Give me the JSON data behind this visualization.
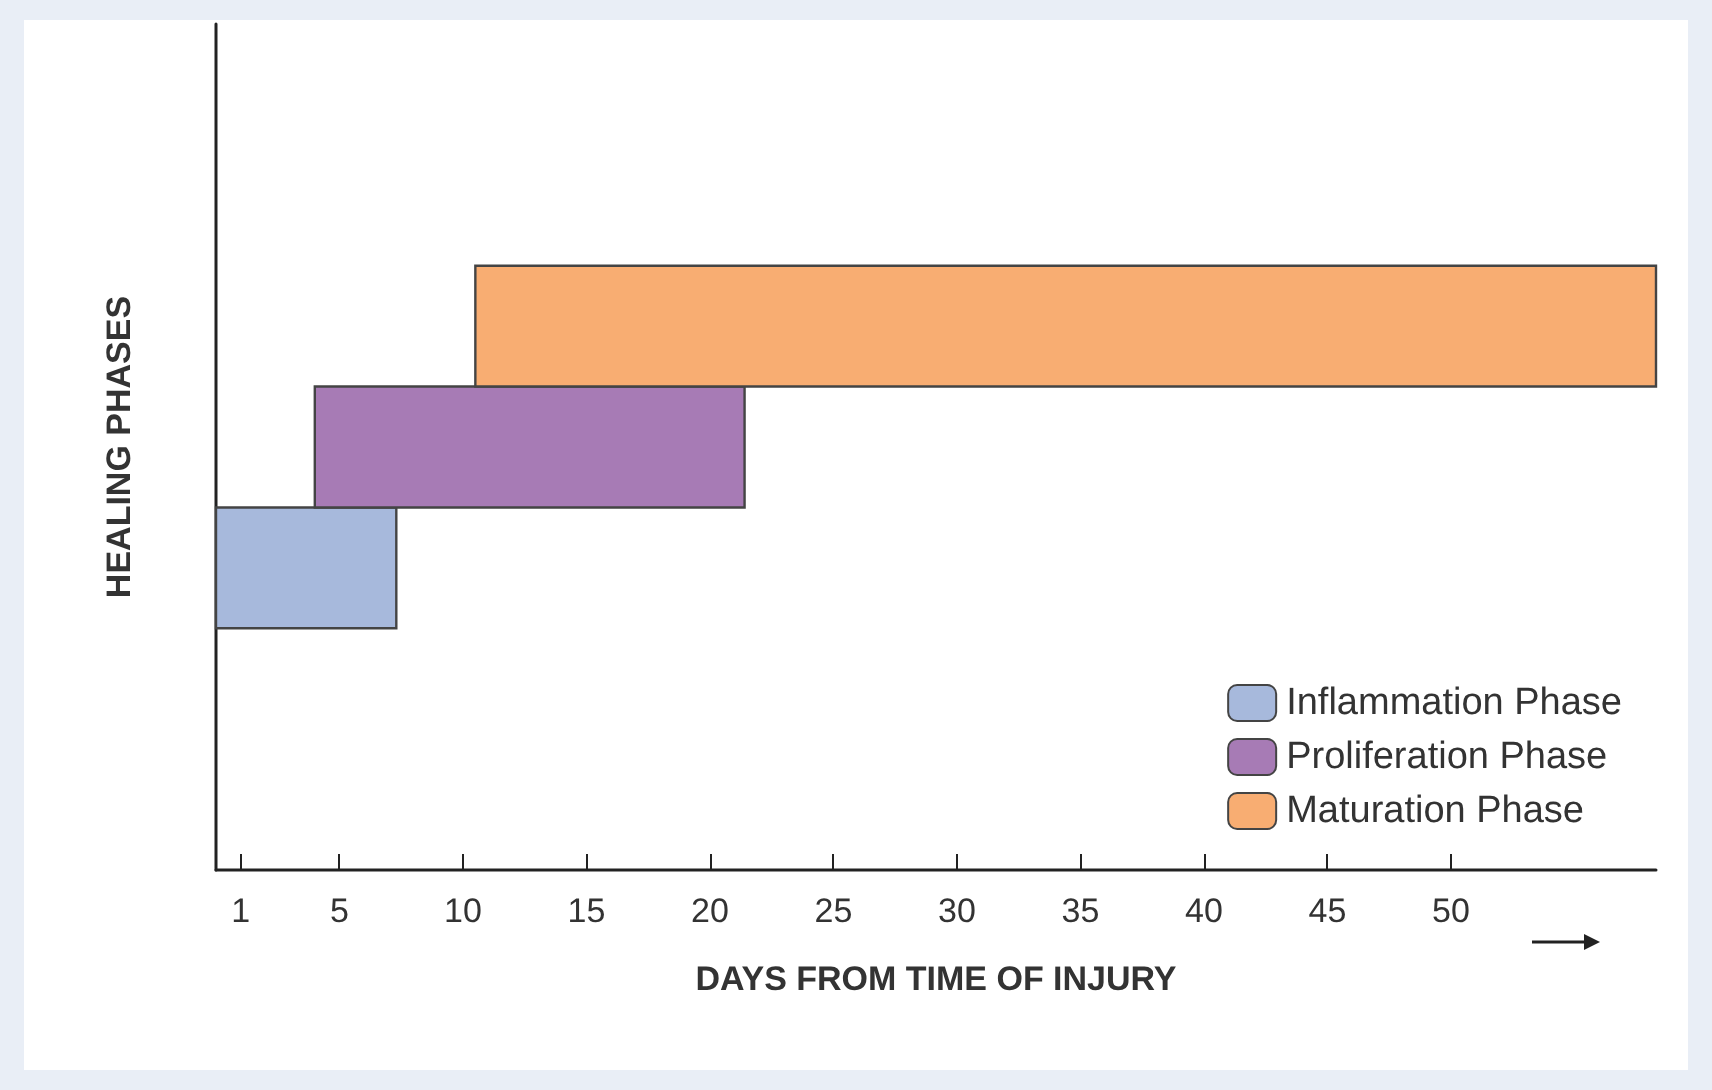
{
  "chart_data": {
    "type": "bar",
    "orientation": "horizontal",
    "xlabel": "DAYS FROM TIME OF INJURY",
    "ylabel": "HEALING PHASES",
    "categories": [
      null,
      null,
      null,
      null,
      null,
      null,
      null
    ],
    "series": [
      {
        "name": "Inflammation Phase",
        "color": "#a7b9dc",
        "values": [
          null,
          null,
          null,
          null,
          7.3,
          null,
          null
        ],
        "base": [
          null,
          null,
          null,
          null,
          0,
          null,
          null
        ]
      },
      {
        "name": "Proliferation Phase",
        "color": "#a77bb5",
        "values": [
          null,
          null,
          null,
          17.4,
          null,
          null,
          null
        ],
        "base": [
          null,
          null,
          null,
          4,
          null,
          null,
          null
        ]
      },
      {
        "name": "Maturation Phase",
        "color": "#f8ad72",
        "values": [
          null,
          null,
          47.8,
          null,
          null,
          null,
          null
        ],
        "base": [
          null,
          null,
          10.5,
          null,
          null,
          null,
          null
        ]
      }
    ],
    "xlim": [
      0,
      58.3
    ],
    "xticks": [
      1,
      5,
      10,
      15,
      20,
      25,
      30,
      35,
      40,
      45,
      50
    ],
    "legend": "bottom right",
    "grid": false
  }
}
